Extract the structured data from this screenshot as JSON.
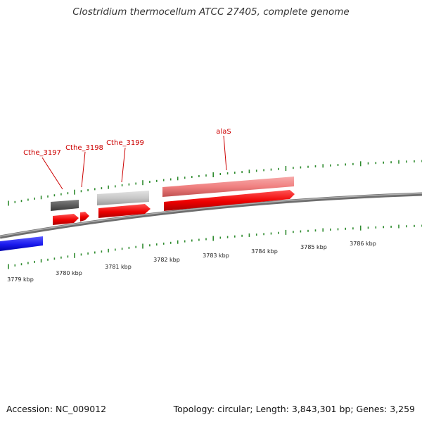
{
  "title": "Clostridium thermocellum ATCC 27405, complete genome",
  "footer": {
    "accession": "Accession: NC_009012",
    "summary": "Topology: circular; Length: 3,843,301 bp; Genes: 3,259"
  },
  "colors": {
    "backbone": "#8c8c8c",
    "tick": "#2e8b2e",
    "label": "#cc0000",
    "gene_forward": "#ee0000",
    "gene_reverse": "#1a1aee",
    "feature_dark": "#5c5c5c",
    "feature_light": "#c8c8c8",
    "feature_pink": "#f08080"
  },
  "scale_labels": [
    "3779 kbp",
    "3780 kbp",
    "3781 kbp",
    "3782 kbp",
    "3783 kbp",
    "3784 kbp",
    "3785 kbp",
    "3786 kbp"
  ],
  "gene_labels": [
    "Cthe_3197",
    "Cthe_3198",
    "Cthe_3199",
    "alaS"
  ]
}
